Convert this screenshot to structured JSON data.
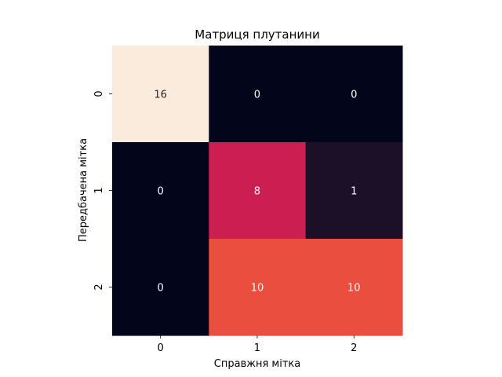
{
  "chart_data": {
    "type": "heatmap",
    "title": "Матриця плутанини",
    "xlabel": "Справжня мітка",
    "ylabel": "Передбачена мітка",
    "x_categories": [
      "0",
      "1",
      "2"
    ],
    "y_categories": [
      "0",
      "1",
      "2"
    ],
    "values": [
      [
        16,
        0,
        0
      ],
      [
        0,
        8,
        1
      ],
      [
        0,
        10,
        10
      ]
    ],
    "value_range": [
      0,
      16
    ],
    "colormap": "rocket",
    "colorbar": false,
    "grid": false
  }
}
